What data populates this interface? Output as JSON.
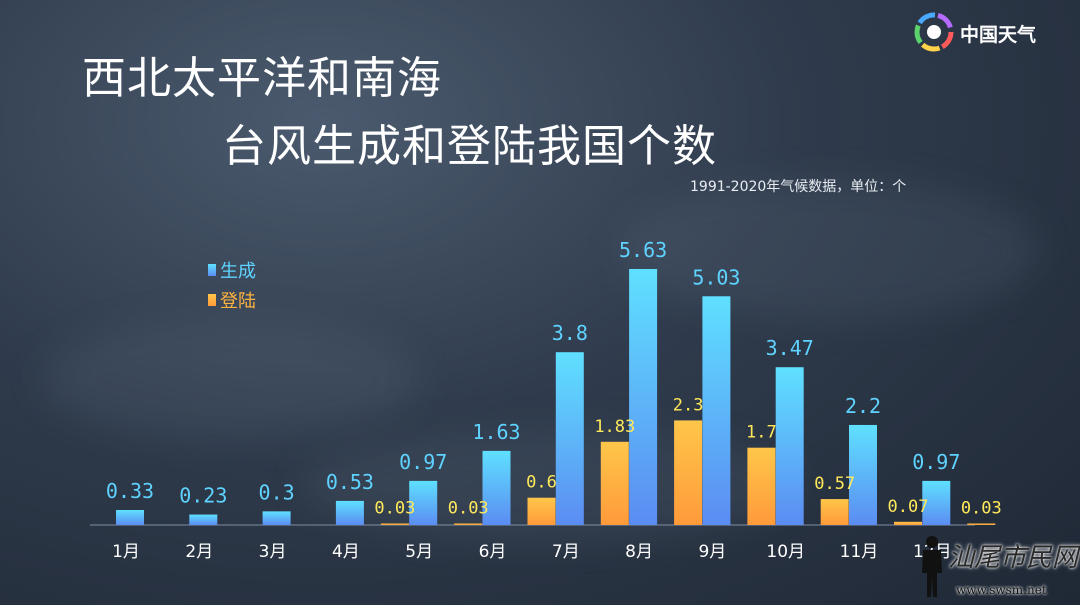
{
  "header": {
    "title_line1": "西北太平洋和南海",
    "title_line2": "台风生成和登陆我国个数",
    "subtitle": "1991-2020年气候数据，单位：个"
  },
  "brand": {
    "name": "中国天气"
  },
  "watermark": {
    "text": "汕尾市民网",
    "url": "www.swsm.net"
  },
  "colors": {
    "generated": "#5fd3ff",
    "landed": "#ffb23f",
    "landed_label": "#ffe85a"
  },
  "chart_data": {
    "type": "bar",
    "title": "西北太平洋和南海 台风生成和登陆我国个数",
    "subtitle": "1991-2020年气候数据，单位：个",
    "categories": [
      "1月",
      "2月",
      "3月",
      "4月",
      "5月",
      "6月",
      "7月",
      "8月",
      "9月",
      "10月",
      "11月",
      "12月"
    ],
    "series": [
      {
        "name": "生成",
        "values": [
          0.33,
          0.23,
          0.3,
          0.53,
          0.97,
          1.63,
          3.8,
          5.63,
          5.03,
          3.47,
          2.2,
          0.97
        ],
        "labels": [
          "0.33",
          "0.23",
          "0.3",
          "0.53",
          "0.97",
          "1.63",
          "3.8",
          "5.63",
          "5.03",
          "3.47",
          "2.2",
          "0.97"
        ]
      },
      {
        "name": "登陆",
        "values": [
          0,
          0,
          0,
          0.03,
          0.03,
          0.6,
          1.83,
          2.3,
          1.7,
          0.57,
          0.07,
          0.03
        ],
        "labels": [
          "",
          "",
          "",
          "0.03",
          "0.03",
          "0.6",
          "1.83",
          "2.3",
          "1.7",
          "0.57",
          "0.07",
          "0.03"
        ]
      }
    ],
    "ylim": [
      0,
      5.63
    ],
    "grid": false,
    "legend": "top-left"
  }
}
